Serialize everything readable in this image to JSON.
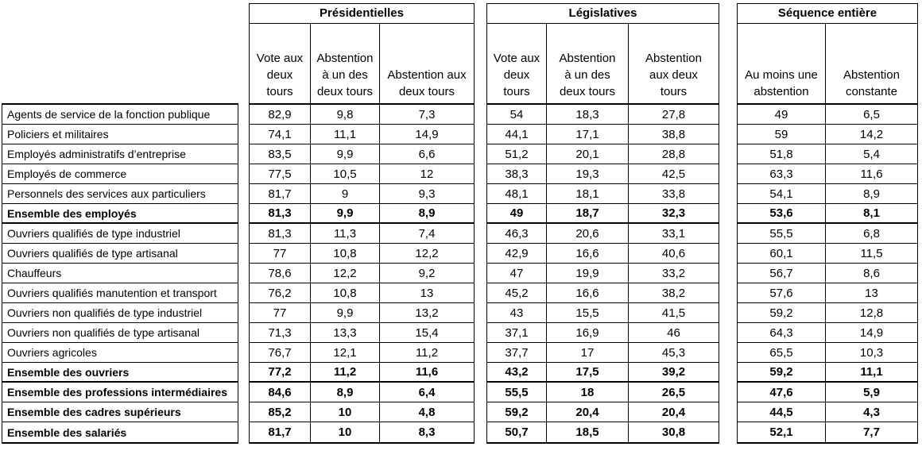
{
  "colors": {
    "border": "#000000",
    "background": "#ffffff",
    "text": "#000000"
  },
  "table": {
    "groups": [
      {
        "title": "Présidentielles",
        "columns": [
          "Vote aux\ndeux\ntours",
          "Abstention\nà un des\ndeux tours",
          "Abstention aux\ndeux tours"
        ]
      },
      {
        "title": "Législatives",
        "columns": [
          "Vote aux\ndeux\ntours",
          "Abstention\nà un des\ndeux tours",
          "Abstention\naux deux\ntours"
        ]
      },
      {
        "title": "Séquence entière",
        "columns": [
          "Au moins une\nabstention",
          "Abstention\nconstante"
        ]
      }
    ],
    "rows": [
      {
        "label": "Agents de service de la fonction publique",
        "bold": false,
        "thick_bottom": false,
        "values": [
          "82,9",
          "9,8",
          "7,3",
          "54",
          "18,3",
          "27,8",
          "49",
          "6,5"
        ]
      },
      {
        "label": "Policiers et militaires",
        "bold": false,
        "thick_bottom": false,
        "values": [
          "74,1",
          "11,1",
          "14,9",
          "44,1",
          "17,1",
          "38,8",
          "59",
          "14,2"
        ]
      },
      {
        "label": "Employés administratifs d’entreprise",
        "bold": false,
        "thick_bottom": false,
        "values": [
          "83,5",
          "9,9",
          "6,6",
          "51,2",
          "20,1",
          "28,8",
          "51,8",
          "5,4"
        ]
      },
      {
        "label": "Employés de commerce",
        "bold": false,
        "thick_bottom": false,
        "values": [
          "77,5",
          "10,5",
          "12",
          "38,3",
          "19,3",
          "42,5",
          "63,3",
          "11,6"
        ]
      },
      {
        "label": "Personnels des services aux particuliers",
        "bold": false,
        "thick_bottom": false,
        "values": [
          "81,7",
          "9",
          "9,3",
          "48,1",
          "18,1",
          "33,8",
          "54,1",
          "8,9"
        ]
      },
      {
        "label": "Ensemble des employés",
        "bold": true,
        "thick_bottom": true,
        "values": [
          "81,3",
          "9,9",
          "8,9",
          "49",
          "18,7",
          "32,3",
          "53,6",
          "8,1"
        ]
      },
      {
        "label": "Ouvriers qualifiés de type industriel",
        "bold": false,
        "thick_bottom": false,
        "values": [
          "81,3",
          "11,3",
          "7,4",
          "46,3",
          "20,6",
          "33,1",
          "55,5",
          "6,8"
        ]
      },
      {
        "label": "Ouvriers qualifiés de type artisanal",
        "bold": false,
        "thick_bottom": false,
        "values": [
          "77",
          "10,8",
          "12,2",
          "42,9",
          "16,6",
          "40,6",
          "60,1",
          "11,5"
        ]
      },
      {
        "label": "Chauffeurs",
        "bold": false,
        "thick_bottom": false,
        "values": [
          "78,6",
          "12,2",
          "9,2",
          "47",
          "19,9",
          "33,2",
          "56,7",
          "8,6"
        ]
      },
      {
        "label": "Ouvriers qualifiés manutention et transport",
        "bold": false,
        "thick_bottom": false,
        "values": [
          "76,2",
          "10,8",
          "13",
          "45,2",
          "16,6",
          "38,2",
          "57,6",
          "13"
        ]
      },
      {
        "label": "Ouvriers non qualifiés de type industriel",
        "bold": false,
        "thick_bottom": false,
        "values": [
          "77",
          "9,9",
          "13,2",
          "43",
          "15,5",
          "41,5",
          "59,2",
          "12,8"
        ]
      },
      {
        "label": "Ouvriers non qualifiés de type artisanal",
        "bold": false,
        "thick_bottom": false,
        "values": [
          "71,3",
          "13,3",
          "15,4",
          "37,1",
          "16,9",
          "46",
          "64,3",
          "14,9"
        ]
      },
      {
        "label": "Ouvriers agricoles",
        "bold": false,
        "thick_bottom": false,
        "values": [
          "76,7",
          "12,1",
          "11,2",
          "37,7",
          "17",
          "45,3",
          "65,5",
          "10,3"
        ]
      },
      {
        "label": "Ensemble des ouvriers",
        "bold": true,
        "thick_bottom": true,
        "values": [
          "77,2",
          "11,2",
          "11,6",
          "43,2",
          "17,5",
          "39,2",
          "59,2",
          "11,1"
        ]
      },
      {
        "label": "Ensemble des professions intermédiaires",
        "bold": true,
        "thick_bottom": false,
        "values": [
          "84,6",
          "8,9",
          "6,4",
          "55,5",
          "18",
          "26,5",
          "47,6",
          "5,9"
        ]
      },
      {
        "label": "Ensemble des cadres supérieurs",
        "bold": true,
        "thick_bottom": false,
        "values": [
          "85,2",
          "10",
          "4,8",
          "59,2",
          "20,4",
          "20,4",
          "44,5",
          "4,3"
        ]
      },
      {
        "label": "Ensemble des salariés",
        "bold": true,
        "thick_bottom": true,
        "values": [
          "81,7",
          "10",
          "8,3",
          "50,7",
          "18,5",
          "30,8",
          "52,1",
          "7,7"
        ]
      }
    ]
  }
}
